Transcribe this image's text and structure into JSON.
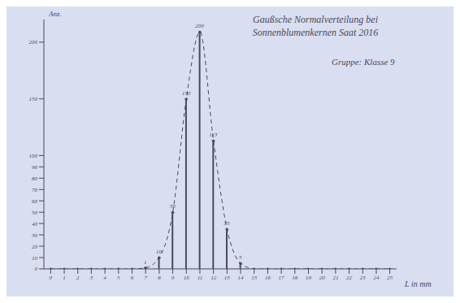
{
  "chart_data": {
    "type": "bar",
    "title": "Gaußsche Normalverteilung bei Sonnenblumenkernen Saat 2016",
    "subtitle": "Gruppe: Klasse 9",
    "x_label": "L in mm",
    "y_label": "Anz.",
    "categories": [
      "0",
      "1",
      "2",
      "3",
      "4",
      "5",
      "6",
      "7",
      "8",
      "9",
      "10",
      "11",
      "12",
      "13",
      "14",
      "15",
      "16",
      "17",
      "18",
      "19",
      "20",
      "21",
      "22",
      "23",
      "24",
      "25"
    ],
    "values": [
      0,
      0,
      0,
      0,
      0,
      0,
      0,
      1,
      10,
      50,
      150,
      209,
      113,
      35,
      5,
      0,
      0,
      0,
      0,
      0,
      0,
      0,
      0,
      0,
      0,
      0
    ],
    "color": "#4a4a5c",
    "line_style": "dashed",
    "marker": "circle",
    "data_labels": true,
    "ylim": [
      0,
      220
    ],
    "yticks": [
      0,
      10,
      20,
      30,
      40,
      50,
      60,
      70,
      80,
      90,
      100,
      150,
      200
    ],
    "grid": false
  }
}
